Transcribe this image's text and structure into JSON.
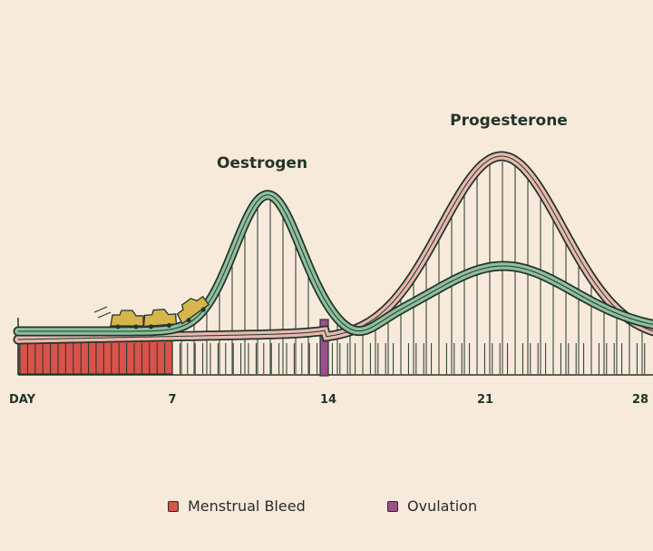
{
  "diagram": {
    "x_axis": {
      "start_label": "DAY",
      "ticks": [
        {
          "day": 7,
          "label": "7"
        },
        {
          "day": 14,
          "label": "14"
        },
        {
          "day": 21,
          "label": "21"
        },
        {
          "day": 28,
          "label": "28"
        }
      ]
    },
    "curves": {
      "oestrogen": {
        "label": "Oestrogen",
        "color": "#8fbf9f"
      },
      "progesterone": {
        "label": "Progesterone",
        "color": "#e8b8ae"
      }
    },
    "phases": {
      "menstrual_bleed": {
        "label": "Menstrual Bleed",
        "color": "#d9534a",
        "start_day": 0,
        "end_day": 7
      },
      "ovulation": {
        "label": "Ovulation",
        "color": "#9b4f8e",
        "day": 14
      }
    },
    "colors": {
      "background": "#f8eadb",
      "outline": "#22352b"
    }
  }
}
